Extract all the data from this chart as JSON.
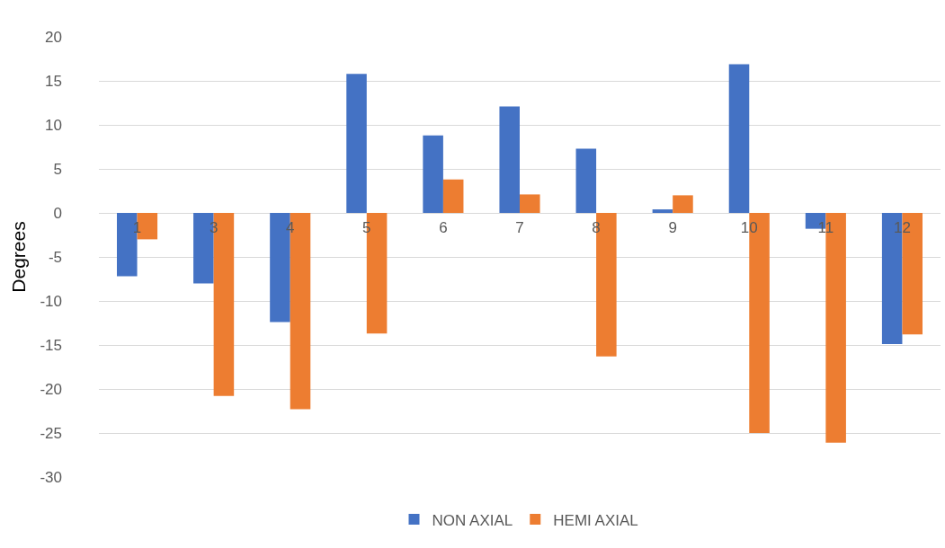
{
  "chart_data": {
    "type": "bar",
    "ylabel": "Degrees",
    "categories": [
      "1",
      "3",
      "4",
      "5",
      "6",
      "7",
      "8",
      "9",
      "10",
      "11",
      "12"
    ],
    "series": [
      {
        "name": "NON AXIAL",
        "color": "#4472c4",
        "values": [
          -7.2,
          -8,
          -12.4,
          15.8,
          8.8,
          12.1,
          7.3,
          0.4,
          16.9,
          -1.8,
          -14.9
        ]
      },
      {
        "name": "HEMI AXIAL",
        "color": "#ed7d31",
        "values": [
          -3,
          -20.8,
          -22.3,
          -13.7,
          3.8,
          2.1,
          -16.3,
          2,
          -25,
          -26.1,
          -13.8
        ]
      }
    ],
    "ylim": [
      -30,
      20
    ],
    "yticks": [
      -30,
      -25,
      -20,
      -15,
      -10,
      -5,
      0,
      5,
      10,
      15,
      20
    ],
    "grid": "y",
    "legend": "bottom"
  }
}
